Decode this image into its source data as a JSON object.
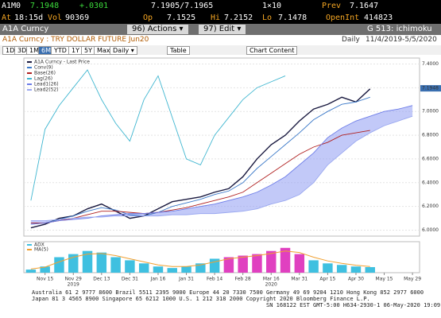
{
  "header": {
    "ticker": "A1M0",
    "last": "7.1948",
    "change": "+.0301",
    "bidask": "7.1905/7.1965",
    "size": "1×10",
    "prev_label": "Prev",
    "prev": "7.1647",
    "at_label": "At",
    "time": "18:15d",
    "vol_label": "Vol",
    "vol": "90369",
    "op_label": "Op",
    "op": "7.1525",
    "hi_label": "Hi",
    "hi": "7.2152",
    "lo_label": "Lo",
    "lo": "7.1478",
    "oi_label": "OpenInt",
    "oi": "414823"
  },
  "toolbar": {
    "security": "A1A Curncy",
    "actions": "96) Actions ▾",
    "edit": "97) Edit ▾",
    "page": "G 513: ichimoku",
    "description": "A1A Curncy : TRY DOLLAR FUTURE Jun20",
    "period": "Daily",
    "range": "11/4/2019-5/5/2020",
    "buttons": [
      "1D",
      "3D",
      "1M",
      "6M",
      "YTD",
      "1Y",
      "5Y",
      "Max",
      "Daily ▾",
      "Table",
      "Chart Content"
    ]
  },
  "chart_data": [
    {
      "type": "line",
      "categories": [
        null,
        "Nov 15",
        null,
        "Nov 29",
        null,
        "Dec 13",
        null,
        "Dec 31",
        null,
        "Jan 16",
        null,
        "Jan 31",
        null,
        "Feb 14",
        null,
        "Feb 28",
        null,
        "Mar 16",
        null,
        "Mar 31",
        null,
        "Apr 15",
        null,
        "Apr 30",
        null,
        "May 15",
        null,
        "May 29"
      ],
      "year_labels": [
        "2019",
        "2020"
      ],
      "ylim": [
        5.95,
        7.45
      ],
      "yticks": [
        {
          "value": 6.0,
          "label": "6.0000"
        },
        {
          "value": 6.2,
          "label": "6.2000"
        },
        {
          "value": 6.4,
          "label": "6.4000"
        },
        {
          "value": 6.6,
          "label": "6.6000"
        },
        {
          "value": 6.8,
          "label": "6.8000"
        },
        {
          "value": 7.0,
          "label": "7.0000"
        },
        {
          "value": 7.2,
          "label": "7.2000"
        },
        {
          "value": 7.4,
          "label": "7.4000"
        }
      ],
      "last_price_label": "7.1948",
      "last_price": 7.1948,
      "grid": true,
      "series": [
        {
          "name": "A1A Curncy - Last Price",
          "color": "#1a1a40",
          "values": [
            6.02,
            6.05,
            6.1,
            6.12,
            6.18,
            6.22,
            6.16,
            6.1,
            6.12,
            6.18,
            6.24,
            6.26,
            6.28,
            6.32,
            6.35,
            6.45,
            6.6,
            6.72,
            6.8,
            6.92,
            7.02,
            7.06,
            7.12,
            7.08,
            7.19,
            null,
            null,
            null
          ]
        },
        {
          "name": "Conv(9)",
          "color": "#3a78c8",
          "values": [
            6.05,
            6.06,
            6.09,
            6.12,
            6.16,
            6.19,
            6.17,
            6.13,
            6.12,
            6.15,
            6.2,
            6.23,
            6.26,
            6.3,
            6.33,
            6.4,
            6.52,
            6.62,
            6.72,
            6.82,
            6.93,
            7.0,
            7.06,
            7.08,
            7.12,
            null,
            null,
            null
          ]
        },
        {
          "name": "Base(26)",
          "color": "#b02020",
          "values": [
            6.06,
            6.06,
            6.08,
            6.1,
            6.13,
            6.16,
            6.16,
            6.15,
            6.14,
            6.15,
            6.17,
            6.19,
            6.22,
            6.25,
            6.28,
            6.32,
            6.4,
            6.48,
            6.56,
            6.64,
            6.7,
            6.74,
            6.8,
            6.82,
            6.84,
            null,
            null,
            null
          ]
        },
        {
          "name": "Lag(26)",
          "color": "#3fb6d0",
          "values": [
            6.25,
            6.85,
            7.05,
            7.2,
            7.35,
            7.1,
            6.9,
            6.75,
            7.1,
            7.3,
            6.95,
            6.6,
            6.55,
            6.8,
            6.95,
            7.1,
            7.2,
            7.25,
            7.3,
            null,
            null,
            null,
            null,
            null,
            null,
            null,
            null,
            null
          ]
        },
        {
          "name": "Lead1(26)",
          "color": "#6d7de8",
          "values": [
            6.05,
            6.06,
            6.08,
            6.09,
            6.1,
            6.12,
            6.13,
            6.14,
            6.14,
            6.15,
            6.16,
            6.18,
            6.2,
            6.22,
            6.25,
            6.28,
            6.32,
            6.38,
            6.45,
            6.55,
            6.65,
            6.78,
            6.86,
            6.92,
            6.96,
            7.0,
            7.02,
            7.05
          ]
        },
        {
          "name": "Lead2(52)",
          "color": "#9aa8f0",
          "values": [
            6.08,
            6.08,
            6.09,
            6.1,
            6.11,
            6.11,
            6.12,
            6.12,
            6.12,
            6.12,
            6.13,
            6.13,
            6.14,
            6.14,
            6.15,
            6.16,
            6.18,
            6.22,
            6.25,
            6.3,
            6.4,
            6.55,
            6.65,
            6.75,
            6.82,
            6.88,
            6.92,
            6.96
          ]
        }
      ]
    },
    {
      "type": "bar",
      "ylim": [
        0,
        1
      ],
      "series": [
        {
          "name": "ADX",
          "color": "#3fc0e0",
          "values": [
            0.1,
            0.2,
            0.5,
            0.6,
            0.7,
            0.65,
            0.5,
            0.4,
            0.3,
            0.2,
            0.15,
            0.2,
            0.3,
            0.45,
            0.5,
            0.55,
            0.6,
            0.7,
            0.8,
            0.6,
            0.4,
            0.3,
            0.25,
            0.2,
            0.18,
            null,
            null,
            null
          ]
        },
        {
          "name": "MA(5)",
          "color": "#f0a030",
          "values": [
            0.12,
            0.18,
            0.35,
            0.5,
            0.6,
            0.62,
            0.55,
            0.45,
            0.35,
            0.25,
            0.2,
            0.2,
            0.25,
            0.35,
            0.45,
            0.5,
            0.55,
            0.62,
            0.7,
            0.65,
            0.5,
            0.38,
            0.3,
            0.24,
            0.2,
            null,
            null,
            null
          ]
        }
      ]
    }
  ],
  "status": {
    "line1": "Australia 61 2 9777 8600 Brazil 5511 2395 9000 Europe 44 20 7330 7500 Germany 49 69 9204 1210 Hong Kong 852 2977 6000",
    "line2": "Japan 81 3 4565 8900 Singapore 65 6212 1000 U.S. 1 212 318 2000 Copyright 2020 Bloomberg Finance L.P.",
    "line3": "SN 168122 EST GMT-5:00 H634-2930-1 06-May-2020 19:09:57"
  }
}
